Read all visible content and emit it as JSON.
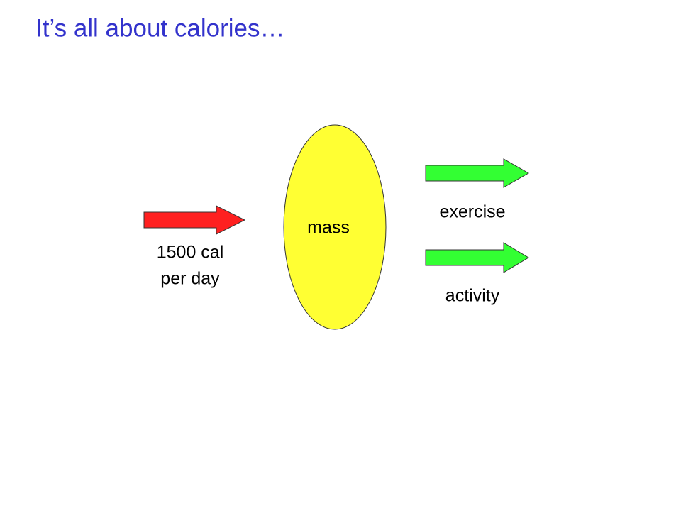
{
  "header": {
    "title": "It’s all about calories…"
  },
  "nodes": [
    {
      "label": "mass"
    },
    {
      "label": [
        "1500 cal",
        "per day"
      ]
    },
    {
      "label": "exercise"
    },
    {
      "label": "activity"
    }
  ]
}
